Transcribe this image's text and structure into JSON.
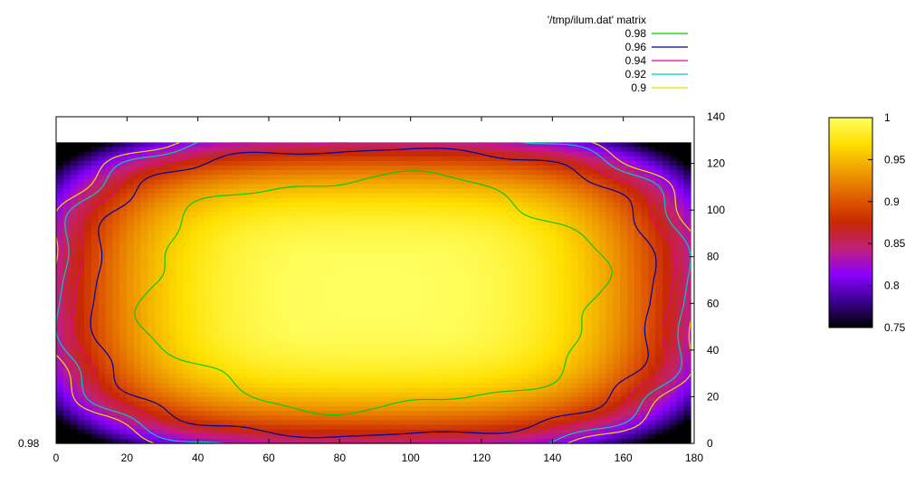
{
  "chart_data": {
    "type": "heatmap",
    "title": "",
    "legend_title": "'/tmp/ilum.dat' matrix",
    "contour_levels": [
      {
        "label": "0.98",
        "value": 0.98,
        "color": "#00cc00"
      },
      {
        "label": "0.96",
        "value": 0.96,
        "color": "#0000a0"
      },
      {
        "label": "0.94",
        "value": 0.94,
        "color": "#e000a0"
      },
      {
        "label": "0.92",
        "value": 0.92,
        "color": "#00c8c8"
      },
      {
        "label": "0.9",
        "value": 0.9,
        "color": "#e8e000"
      }
    ],
    "legend_placement": "top-right",
    "x_range": [
      0,
      180
    ],
    "y_range": [
      0,
      140
    ],
    "data_extent": {
      "x": [
        0,
        179
      ],
      "y": [
        0,
        129
      ]
    },
    "x_ticks": [
      "0",
      "20",
      "40",
      "60",
      "80",
      "100",
      "120",
      "140",
      "160",
      "180"
    ],
    "y_ticks": [
      "0",
      "20",
      "40",
      "60",
      "80",
      "100",
      "120",
      "140"
    ],
    "y_axis_side": "right",
    "colorbar": {
      "range": [
        0.75,
        1.0
      ],
      "ticks": [
        "0.75",
        "0.8",
        "0.85",
        "0.9",
        "0.95",
        "1"
      ],
      "palette": [
        "#000000",
        "#3a0090",
        "#8a00ff",
        "#c0207a",
        "#c82800",
        "#e06000",
        "#f0a000",
        "#ffe000",
        "#ffff60"
      ]
    },
    "left_overlap_label": "0.98",
    "grid": false,
    "xlabel": "",
    "ylabel": ""
  }
}
